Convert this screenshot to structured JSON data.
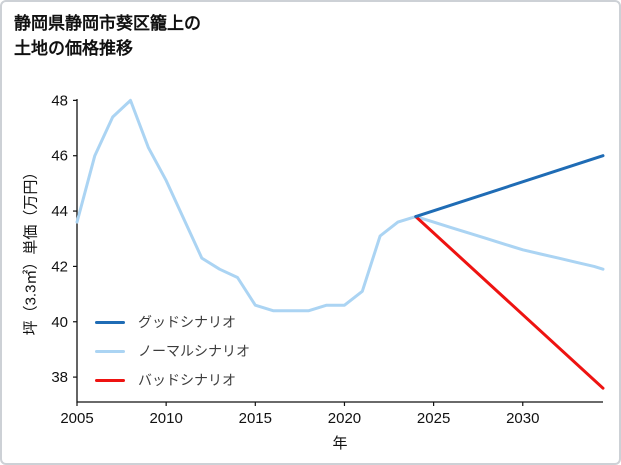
{
  "page": {
    "title_line1": "静岡県静岡市葵区籠上の",
    "title_line2": "土地の価格推移"
  },
  "chart_data": {
    "type": "line",
    "title": "静岡県静岡市葵区籠上の土地の価格推移",
    "xlabel": "年",
    "ylabel": "坪（3.3㎡）単価（万円）",
    "xlim": [
      2005,
      2034.5
    ],
    "ylim": [
      37.1,
      48.05
    ],
    "xticks": [
      2005,
      2010,
      2015,
      2020,
      2025,
      2030
    ],
    "yticks": [
      38,
      40,
      42,
      44,
      46,
      48
    ],
    "grid": false,
    "legend_position": "lower-left",
    "axis_color": "#111111",
    "series": [
      {
        "name": "グッドシナリオ",
        "color": "#1f6cb5",
        "x": [
          2024,
          2034.5
        ],
        "y": [
          43.8,
          46.0
        ]
      },
      {
        "name": "ノーマルシナリオ",
        "color": "#abd4f3",
        "x": [
          2005,
          2006,
          2007,
          2008,
          2009,
          2010,
          2011,
          2012,
          2013,
          2014,
          2015,
          2016,
          2017,
          2018,
          2019,
          2020,
          2021,
          2022,
          2023,
          2024,
          2025,
          2026,
          2027,
          2028,
          2029,
          2030,
          2031,
          2032,
          2033,
          2034,
          2034.5
        ],
        "y": [
          43.6,
          46.0,
          47.4,
          48.0,
          46.3,
          45.1,
          43.7,
          42.3,
          41.9,
          41.6,
          40.6,
          40.4,
          40.4,
          40.4,
          40.6,
          40.6,
          41.1,
          43.1,
          43.6,
          43.8,
          43.6,
          43.4,
          43.2,
          43.0,
          42.8,
          42.6,
          42.45,
          42.3,
          42.15,
          42.0,
          41.9
        ]
      },
      {
        "name": "バッドシナリオ",
        "color": "#ee1311",
        "x": [
          2024,
          2034.5
        ],
        "y": [
          43.8,
          37.6
        ]
      }
    ]
  }
}
